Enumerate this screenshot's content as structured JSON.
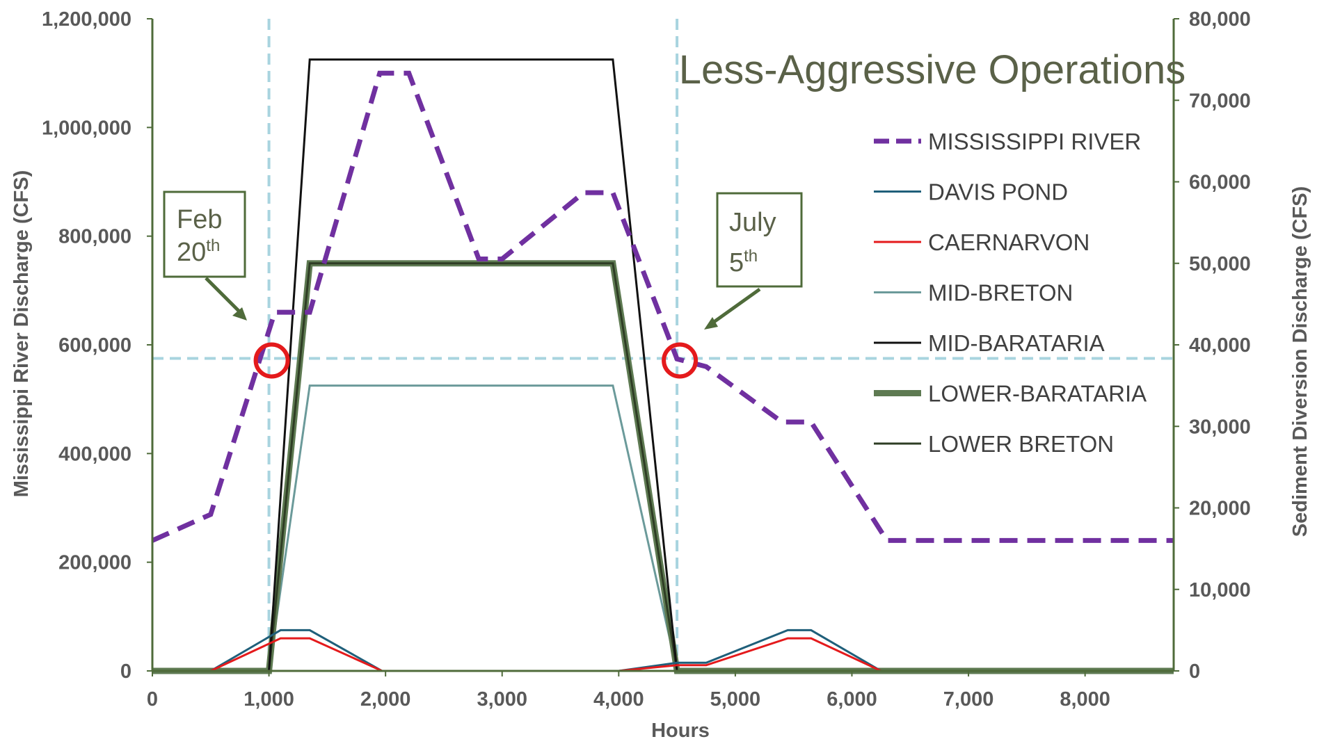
{
  "chart_data": {
    "type": "line",
    "title": "Less-Aggressive Operations",
    "xlabel": "Hours",
    "ylabel_left": "Mississippi River Discharge (CFS)",
    "ylabel_right": "Sediment Diversion Discharge (CFS)",
    "xlim": [
      0,
      8760
    ],
    "ylim_left": [
      0,
      1200000
    ],
    "ylim_right": [
      0,
      80000
    ],
    "x_ticks": [
      {
        "v": 0,
        "label": "0"
      },
      {
        "v": 1000,
        "label": "1,000"
      },
      {
        "v": 2000,
        "label": "2,000"
      },
      {
        "v": 3000,
        "label": "3,000"
      },
      {
        "v": 4000,
        "label": "4,000"
      },
      {
        "v": 5000,
        "label": "5,000"
      },
      {
        "v": 6000,
        "label": "6,000"
      },
      {
        "v": 7000,
        "label": "7,000"
      },
      {
        "v": 8000,
        "label": "8,000"
      }
    ],
    "y_left_ticks": [
      {
        "v": 0,
        "label": "0"
      },
      {
        "v": 200000,
        "label": "200,000"
      },
      {
        "v": 400000,
        "label": "400,000"
      },
      {
        "v": 600000,
        "label": "600,000"
      },
      {
        "v": 800000,
        "label": "800,000"
      },
      {
        "v": 1000000,
        "label": "1,000,000"
      },
      {
        "v": 1200000,
        "label": "1,200,000"
      }
    ],
    "y_right_ticks": [
      {
        "v": 0,
        "label": "0"
      },
      {
        "v": 10000,
        "label": "10,000"
      },
      {
        "v": 20000,
        "label": "20,000"
      },
      {
        "v": 30000,
        "label": "30,000"
      },
      {
        "v": 40000,
        "label": "40,000"
      },
      {
        "v": 50000,
        "label": "50,000"
      },
      {
        "v": 60000,
        "label": "60,000"
      },
      {
        "v": 70000,
        "label": "70,000"
      },
      {
        "v": 80000,
        "label": "80,000"
      }
    ],
    "legend_position": "right",
    "series": [
      {
        "name": "MISSISSIPPI RIVER",
        "axis": "left",
        "color": "#7030a0",
        "style": "dashed",
        "points": [
          [
            0,
            240000
          ],
          [
            500,
            288000
          ],
          [
            1050,
            660000
          ],
          [
            1350,
            660000
          ],
          [
            1950,
            1100000
          ],
          [
            2200,
            1100000
          ],
          [
            2800,
            758000
          ],
          [
            3000,
            758000
          ],
          [
            3700,
            880000
          ],
          [
            3950,
            880000
          ],
          [
            4500,
            574000
          ],
          [
            4750,
            560000
          ],
          [
            5400,
            458000
          ],
          [
            5650,
            458000
          ],
          [
            6300,
            240000
          ],
          [
            8760,
            240000
          ]
        ]
      },
      {
        "name": "DAVIS POND",
        "axis": "right",
        "color": "#1f5f7a",
        "style": "solid",
        "points": [
          [
            0,
            0
          ],
          [
            500,
            0
          ],
          [
            1100,
            5000
          ],
          [
            1350,
            5000
          ],
          [
            1970,
            0
          ],
          [
            4000,
            0
          ],
          [
            4500,
            1000
          ],
          [
            4750,
            1000
          ],
          [
            5450,
            5000
          ],
          [
            5650,
            5000
          ],
          [
            6250,
            0
          ],
          [
            8760,
            0
          ]
        ]
      },
      {
        "name": "CAERNARVON",
        "axis": "right",
        "color": "#e41a1c",
        "style": "solid",
        "points": [
          [
            0,
            0
          ],
          [
            500,
            0
          ],
          [
            1100,
            4000
          ],
          [
            1350,
            4000
          ],
          [
            1970,
            0
          ],
          [
            4000,
            0
          ],
          [
            4500,
            700
          ],
          [
            4750,
            700
          ],
          [
            5450,
            4000
          ],
          [
            5650,
            4000
          ],
          [
            6250,
            0
          ],
          [
            8760,
            0
          ]
        ]
      },
      {
        "name": "MID-BRETON",
        "axis": "right",
        "color": "#6b9a9a",
        "style": "solid",
        "points": [
          [
            0,
            0
          ],
          [
            1000,
            0
          ],
          [
            1350,
            35000
          ],
          [
            3950,
            35000
          ],
          [
            4500,
            0
          ],
          [
            8760,
            0
          ]
        ]
      },
      {
        "name": "MID-BARATARIA",
        "axis": "right",
        "color": "#111111",
        "style": "solid",
        "points": [
          [
            0,
            0
          ],
          [
            1000,
            0
          ],
          [
            1350,
            75000
          ],
          [
            3950,
            75000
          ],
          [
            4500,
            0
          ],
          [
            8760,
            0
          ]
        ]
      },
      {
        "name": "LOWER-BARATARIA",
        "axis": "right",
        "color": "#5e7a52",
        "style": "thick",
        "points": [
          [
            0,
            0
          ],
          [
            1000,
            0
          ],
          [
            1350,
            50000
          ],
          [
            3950,
            50000
          ],
          [
            4500,
            0
          ],
          [
            8760,
            0
          ]
        ]
      },
      {
        "name": "LOWER BRETON",
        "axis": "right",
        "color": "#2e3d24",
        "style": "solid",
        "points": [
          [
            0,
            0
          ],
          [
            1000,
            0
          ],
          [
            1350,
            50000
          ],
          [
            3950,
            50000
          ],
          [
            4500,
            0
          ],
          [
            8760,
            0
          ]
        ]
      }
    ],
    "reference_lines": {
      "vertical_x": [
        1000,
        4500
      ],
      "horizontal_y_left": 575000,
      "color": "#a8d4df"
    },
    "markers": [
      {
        "x": 1000,
        "y_left": 575000,
        "color": "#e41a1c"
      },
      {
        "x": 4500,
        "y_left": 575000,
        "color": "#e41a1c"
      }
    ],
    "annotations": [
      {
        "month": "Feb",
        "day": "20",
        "suffix": "th"
      },
      {
        "month": "July",
        "day": "5",
        "suffix": "th"
      }
    ]
  }
}
